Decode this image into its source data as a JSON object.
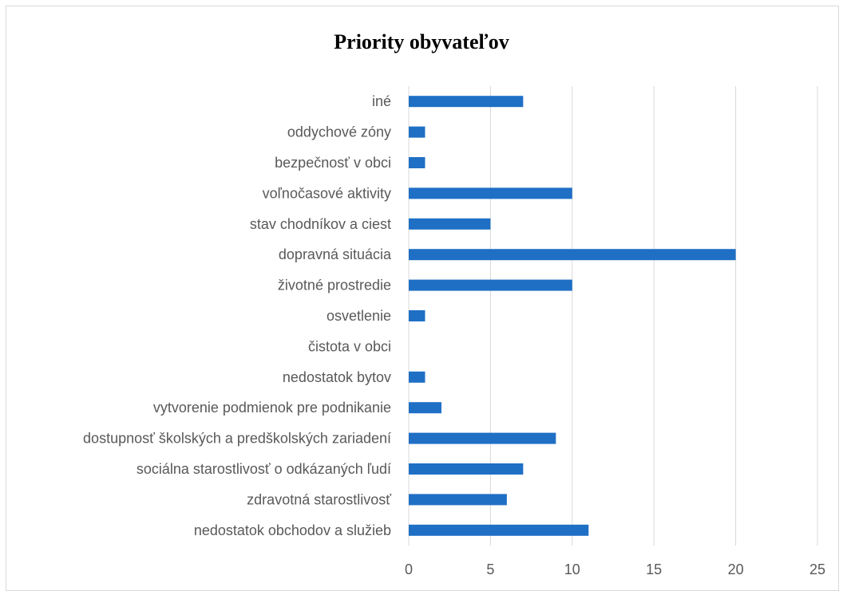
{
  "chart_data": {
    "type": "bar",
    "orientation": "horizontal",
    "title": "Priority obyvateľov",
    "xlabel": "",
    "ylabel": "",
    "xlim": [
      0,
      25
    ],
    "x_ticks": [
      0,
      5,
      10,
      15,
      20,
      25
    ],
    "grid": "vertical",
    "categories": [
      "iné",
      "oddychové zóny",
      "bezpečnosť v obci",
      "voľnočasové aktivity",
      "stav chodníkov a ciest",
      "dopravná situácia",
      "životné prostredie",
      "osvetlenie",
      "čistota v obci",
      "nedostatok bytov",
      "vytvorenie podmienok pre podnikanie",
      "dostupnosť školských a predškolských zariadení",
      "sociálna starostlivosť o odkázaných ľudí",
      "zdravotná starostlivosť",
      "nedostatok obchodov a služieb"
    ],
    "values": [
      7,
      1,
      1,
      10,
      5,
      20,
      10,
      1,
      0,
      1,
      2,
      9,
      7,
      6,
      11
    ],
    "bar_color": "#1f6fc5",
    "grid_color": "#d9d9d9"
  }
}
